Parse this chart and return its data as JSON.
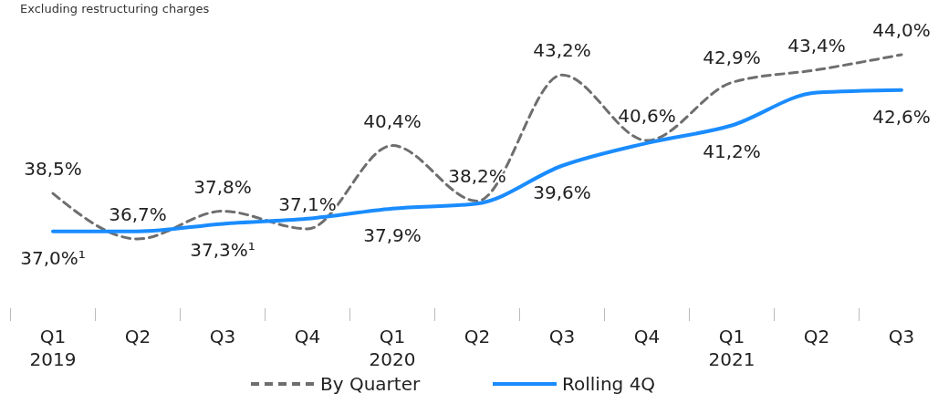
{
  "chart_data": {
    "type": "line",
    "title": "Excluding restructuring charges",
    "categories": [
      "Q1 2019",
      "Q2",
      "Q3",
      "Q4",
      "Q1 2020",
      "Q2",
      "Q3",
      "Q4",
      "Q1 2021",
      "Q2",
      "Q3"
    ],
    "series": [
      {
        "name": "By Quarter",
        "color": "#6e6e6e",
        "line_style": "dashed",
        "values": [
          38.5,
          36.7,
          37.8,
          37.1,
          40.4,
          38.2,
          43.2,
          40.6,
          42.9,
          43.4,
          44.0
        ],
        "value_labels": [
          "38,5%",
          "36,7%",
          "37,8%",
          "37,1%",
          "40,4%",
          "38,2%",
          "43,2%",
          "40,6%",
          "42,9%",
          "43,4%",
          "44,0%"
        ]
      },
      {
        "name": "Rolling 4Q",
        "color": "#1a8cff",
        "line_style": "solid",
        "values": [
          37.0,
          37.0,
          37.3,
          37.5,
          37.9,
          38.1,
          39.6,
          40.5,
          41.2,
          42.5,
          42.6
        ],
        "value_labels": [
          "37,0%¹",
          null,
          "37,3%¹",
          null,
          "37,9%",
          null,
          "39,6%",
          null,
          "41,2%",
          null,
          "42,6%"
        ]
      }
    ],
    "legend": "bottom",
    "marker": "none"
  }
}
